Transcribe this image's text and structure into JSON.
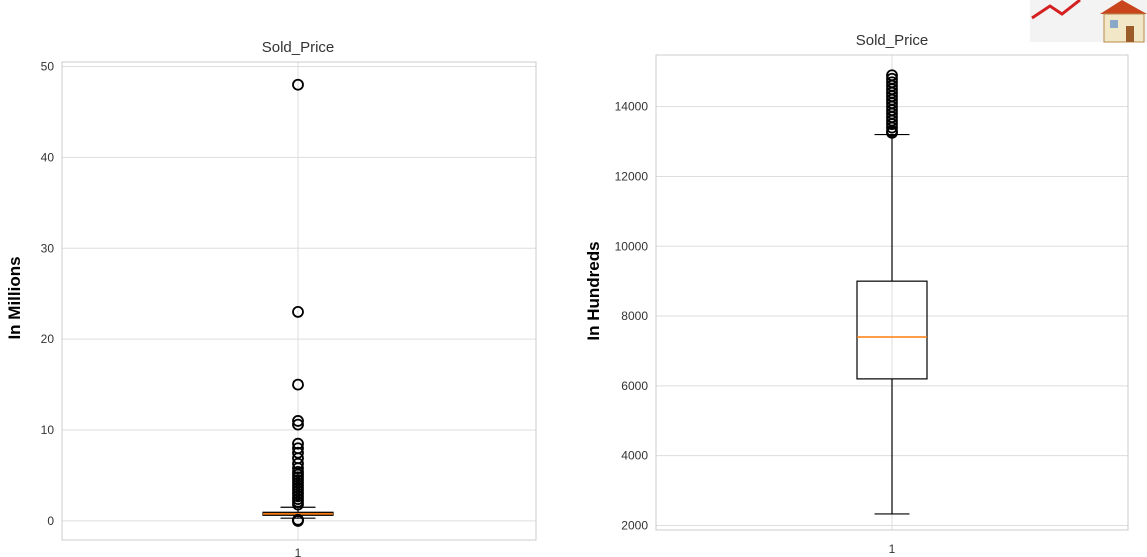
{
  "chart_data": [
    {
      "type": "box",
      "title": "Sold_Price",
      "ylabel": "In Millions",
      "xlabel": "",
      "xticks": [
        "1"
      ],
      "ylim": [
        -2.1,
        50.5
      ],
      "yticks": [
        0,
        10,
        20,
        30,
        40,
        50
      ],
      "grid": true,
      "box": {
        "whislo": 0.3,
        "q1": 0.62,
        "median": 0.78,
        "q3": 0.95,
        "whishi": 1.5
      },
      "fliers": [
        0.0,
        0.05,
        0.12,
        1.8,
        2.1,
        2.4,
        2.7,
        3.0,
        3.3,
        3.6,
        3.9,
        4.2,
        4.5,
        4.8,
        5.1,
        5.4,
        5.8,
        6.3,
        6.9,
        7.5,
        8.0,
        8.5,
        10.6,
        11.0,
        15.0,
        23.0,
        48.0
      ],
      "colors": {
        "box_fill": "#b5642b",
        "box_edge": "#000000",
        "median": "#ff7f0e",
        "grid": "#dddddd",
        "flier": "#000000"
      }
    },
    {
      "type": "box",
      "title": "Sold_Price",
      "ylabel": "In Hundreds",
      "xlabel": "",
      "xticks": [
        "1"
      ],
      "ylim": [
        1870,
        15480
      ],
      "yticks": [
        2000,
        4000,
        6000,
        8000,
        10000,
        12000,
        14000
      ],
      "grid": true,
      "box": {
        "whislo": 2330,
        "q1": 6200,
        "median": 7400,
        "q3": 9000,
        "whishi": 13200
      },
      "fliers": [
        13250,
        13300,
        13400,
        13500,
        13600,
        13700,
        13800,
        13900,
        14000,
        14100,
        14200,
        14300,
        14400,
        14500,
        14600,
        14700,
        14800,
        14900
      ],
      "colors": {
        "box_fill": "none",
        "box_edge": "#000000",
        "median": "#ff7f0e",
        "grid": "#dddddd",
        "flier": "#000000"
      }
    }
  ]
}
